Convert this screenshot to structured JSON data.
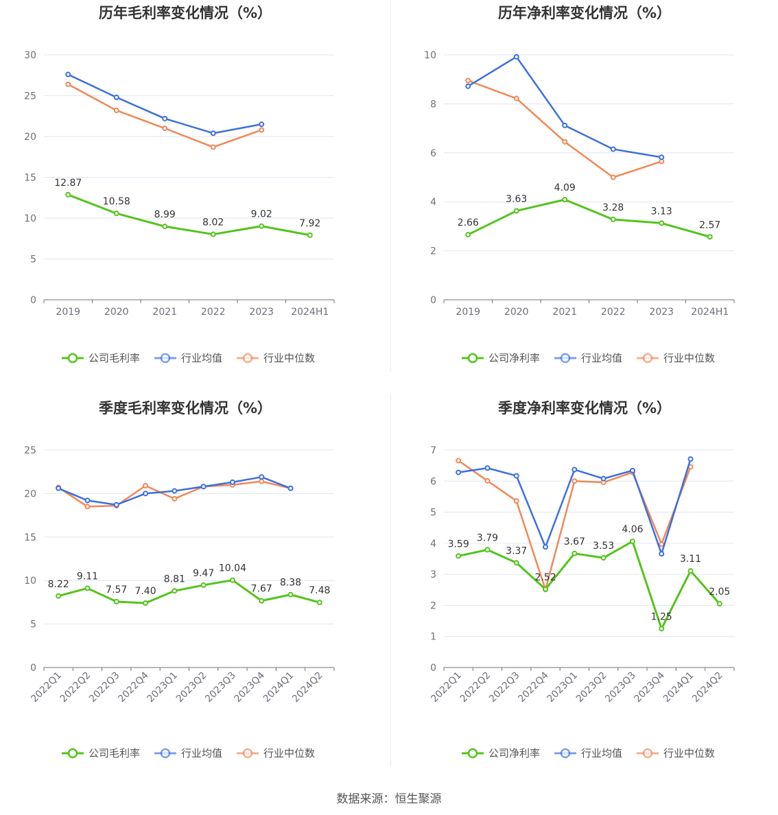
{
  "source_text": "数据来源：恒生聚源",
  "colors": {
    "company": "#52c41a",
    "avg": "#3b6fdf",
    "median": "#f08755"
  },
  "chart_data": [
    {
      "type": "line",
      "title": "历年毛利率变化情况（%）",
      "x": [
        "2019",
        "2020",
        "2021",
        "2022",
        "2023",
        "2024H1"
      ],
      "ylim": [
        0,
        30
      ],
      "yticks": [
        0,
        5,
        10,
        15,
        20,
        25,
        30
      ],
      "grid": true,
      "legend": "bottom",
      "series": [
        {
          "name": "公司毛利率",
          "values": [
            12.87,
            10.58,
            8.99,
            8.02,
            9.02,
            7.92
          ],
          "labels": [
            "12.87",
            "10.58",
            "8.99",
            "8.02",
            "9.02",
            "7.92"
          ]
        },
        {
          "name": "行业均值",
          "values": [
            27.6,
            24.8,
            22.2,
            20.4,
            21.5,
            null
          ]
        },
        {
          "name": "行业中位数",
          "values": [
            26.4,
            23.2,
            21.0,
            18.7,
            20.8,
            null
          ]
        }
      ]
    },
    {
      "type": "line",
      "title": "历年净利率变化情况（%）",
      "x": [
        "2019",
        "2020",
        "2021",
        "2022",
        "2023",
        "2024H1"
      ],
      "ylim": [
        0,
        10
      ],
      "yticks": [
        0,
        2,
        4,
        6,
        8,
        10
      ],
      "grid": true,
      "legend": "bottom",
      "series": [
        {
          "name": "公司净利率",
          "values": [
            2.66,
            3.63,
            4.09,
            3.28,
            3.13,
            2.57
          ],
          "labels": [
            "2.66",
            "3.63",
            "4.09",
            "3.28",
            "3.13",
            "2.57"
          ]
        },
        {
          "name": "行业均值",
          "values": [
            8.72,
            9.92,
            7.12,
            6.15,
            5.82,
            null
          ]
        },
        {
          "name": "行业中位数",
          "values": [
            8.95,
            8.22,
            6.45,
            5.0,
            5.65,
            null
          ]
        }
      ]
    },
    {
      "type": "line",
      "title": "季度毛利率变化情况（%）",
      "x": [
        "2022Q1",
        "2022Q2",
        "2022Q3",
        "2022Q4",
        "2023Q1",
        "2023Q2",
        "2023Q3",
        "2023Q4",
        "2024Q1",
        "2024Q2"
      ],
      "ylim": [
        0,
        25
      ],
      "yticks": [
        0,
        5,
        10,
        15,
        20,
        25
      ],
      "grid": true,
      "legend": "bottom",
      "series": [
        {
          "name": "公司毛利率",
          "values": [
            8.22,
            9.11,
            7.57,
            7.4,
            8.81,
            9.47,
            10.04,
            7.67,
            8.38,
            7.48
          ],
          "labels": [
            "8.22",
            "9.11",
            "7.57",
            "7.40",
            "8.81",
            "9.47",
            "10.04",
            "7.67",
            "8.38",
            "7.48"
          ]
        },
        {
          "name": "行业均值",
          "values": [
            20.6,
            19.2,
            18.7,
            20.0,
            20.3,
            20.8,
            21.3,
            21.9,
            20.6,
            null
          ]
        },
        {
          "name": "行业中位数",
          "values": [
            20.7,
            18.5,
            18.6,
            20.9,
            19.4,
            20.8,
            21.0,
            21.4,
            20.6,
            null
          ]
        }
      ]
    },
    {
      "type": "line",
      "title": "季度净利率变化情况（%）",
      "x": [
        "2022Q1",
        "2022Q2",
        "2022Q3",
        "2022Q4",
        "2023Q1",
        "2023Q2",
        "2023Q3",
        "2023Q4",
        "2024Q1",
        "2024Q2"
      ],
      "ylim": [
        0,
        7
      ],
      "yticks": [
        0,
        1,
        2,
        3,
        4,
        5,
        6,
        7
      ],
      "grid": true,
      "legend": "bottom",
      "series": [
        {
          "name": "公司净利率",
          "values": [
            3.59,
            3.79,
            3.37,
            2.52,
            3.67,
            3.53,
            4.06,
            1.25,
            3.11,
            2.05
          ],
          "labels": [
            "3.59",
            "3.79",
            "3.37",
            "2.52",
            "3.67",
            "3.53",
            "4.06",
            "1.25",
            "3.11",
            "2.05"
          ]
        },
        {
          "name": "行业均值",
          "values": [
            6.28,
            6.42,
            6.17,
            3.88,
            6.37,
            6.08,
            6.34,
            3.66,
            6.71,
            null
          ]
        },
        {
          "name": "行业中位数",
          "values": [
            6.66,
            6.01,
            5.36,
            2.51,
            6.0,
            5.96,
            6.28,
            3.97,
            6.46,
            null
          ]
        }
      ]
    }
  ]
}
